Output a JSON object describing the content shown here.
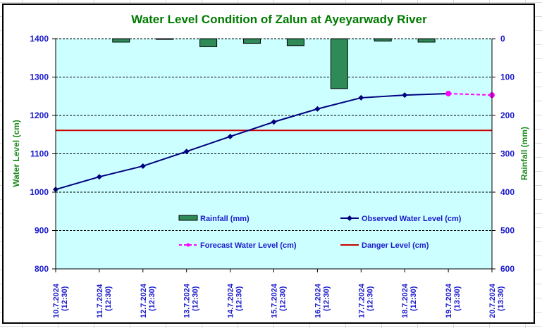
{
  "chart_data": {
    "type": "line",
    "title": "Water Level Condition of Zalun at Ayeyarwady River",
    "ylabel": "Water Level (cm)",
    "y2label": "Rainfall (mm)",
    "ylim": [
      800,
      1400
    ],
    "y2lim": [
      0,
      600
    ],
    "y2_inverted": true,
    "yticks": [
      "1400",
      "1300",
      "1200",
      "1100",
      "1000",
      "900",
      "800"
    ],
    "y2ticks": [
      "0",
      "100",
      "200",
      "300",
      "400",
      "500",
      "600"
    ],
    "categories": [
      [
        "10.7.2024",
        "(12:30)"
      ],
      [
        "11.7.2024",
        "(12:30)"
      ],
      [
        "12.7.2024",
        "(12:30)"
      ],
      [
        "13.7.2024",
        "(12:30)"
      ],
      [
        "14.7.2024",
        "(12:30)"
      ],
      [
        "15.7.2024",
        "(12:30)"
      ],
      [
        "16.7.2024",
        "(12:30)"
      ],
      [
        "17.7.2024",
        "(12:30)"
      ],
      [
        "18.7.2024",
        "(12:30)"
      ],
      [
        "19.7.2024",
        "(13:30)"
      ],
      [
        "20.7.2024",
        "(13:30)"
      ]
    ],
    "grid": true,
    "legend_position": "inside-bottom",
    "series": [
      {
        "name": "Rainfall (mm)",
        "kind": "bar",
        "axis": "right",
        "color": "#2e8b57",
        "values": [
          0,
          0,
          9,
          1,
          21,
          12,
          18,
          130,
          6,
          9,
          null
        ]
      },
      {
        "name": "Observed Water Level (cm)",
        "kind": "line",
        "axis": "left",
        "color": "#000080",
        "values": [
          1007,
          1040,
          1068,
          1106,
          1145,
          1183,
          1217,
          1246,
          1253,
          1257,
          null
        ]
      },
      {
        "name": "Forecast Water Level (cm)",
        "kind": "dashed-line",
        "axis": "left",
        "color": "#ff00ff",
        "values": [
          null,
          null,
          null,
          null,
          null,
          null,
          null,
          null,
          null,
          1257,
          1253
        ]
      },
      {
        "name": "Danger Level (cm)",
        "kind": "hline",
        "axis": "left",
        "color": "#cc0000",
        "value": 1161
      }
    ]
  }
}
